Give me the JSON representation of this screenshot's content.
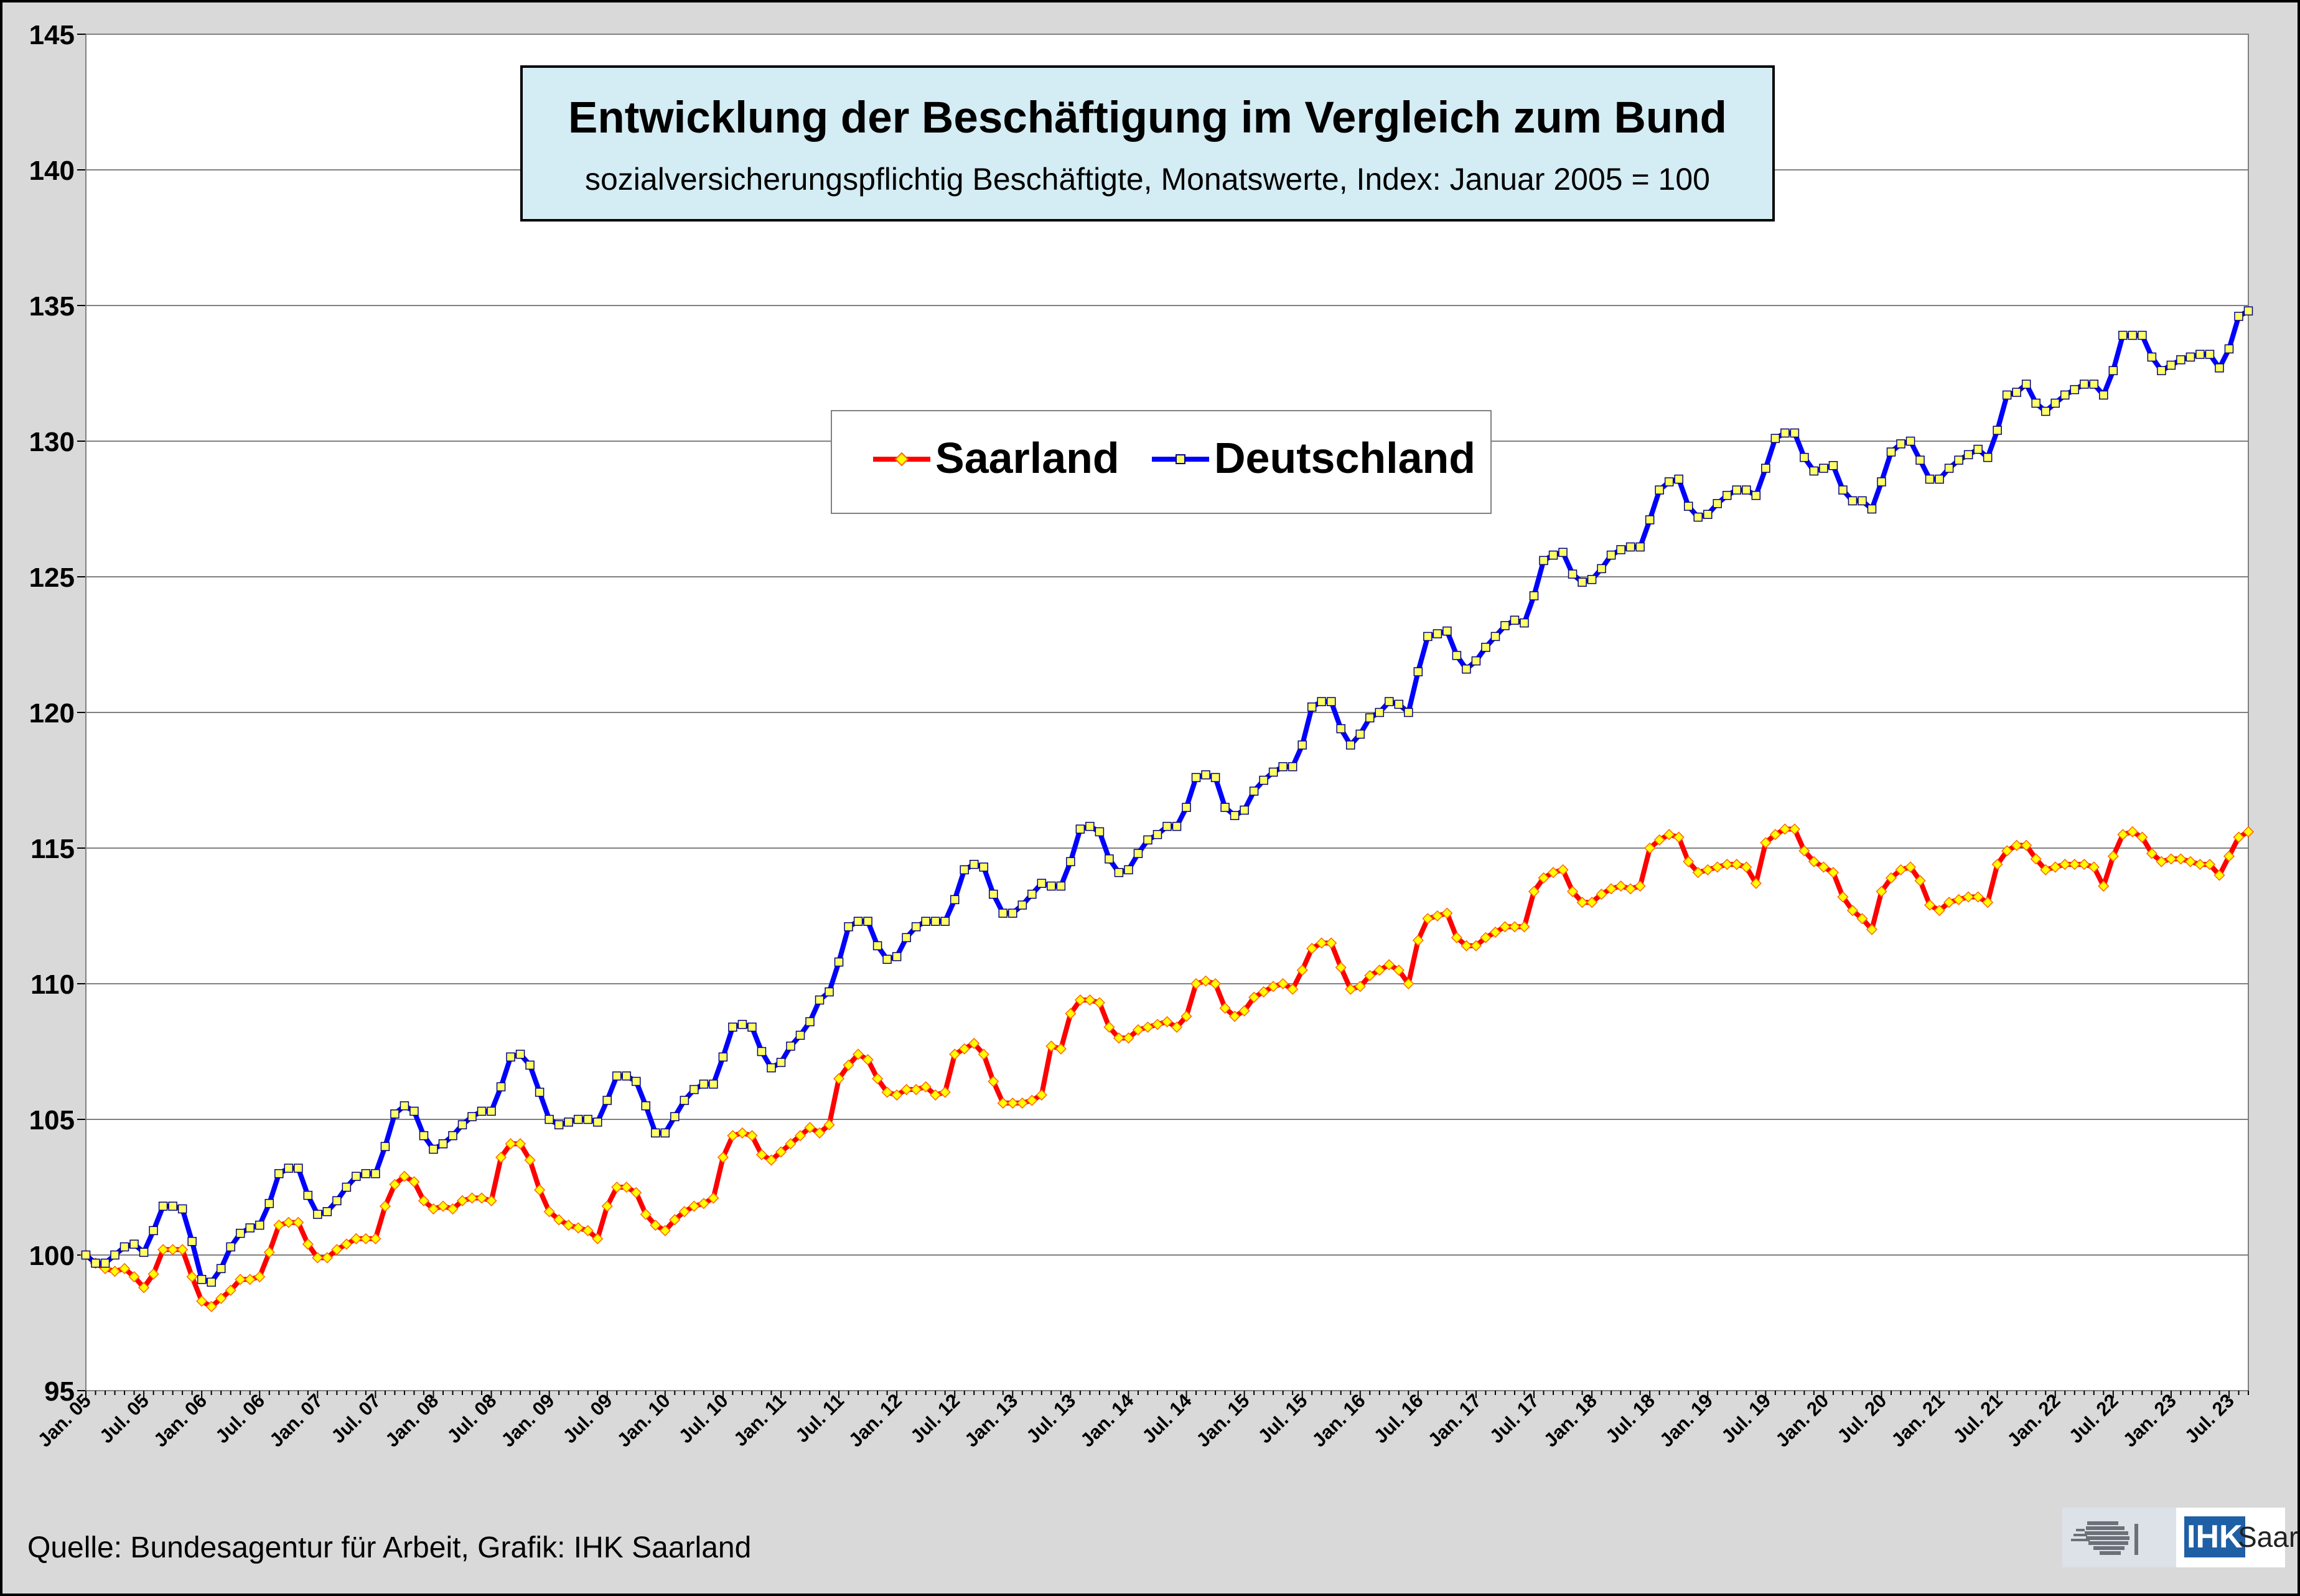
{
  "chart_data": {
    "type": "line",
    "title": "Entwicklung der Beschäftigung im Vergleich zum Bund",
    "subtitle": "sozialversicherungspflichtig Beschäftigte, Monatswerte, Index: Januar 2005 = 100",
    "xlabel": "",
    "ylabel": "",
    "ylim": [
      95,
      145
    ],
    "y_ticks": [
      95,
      100,
      105,
      110,
      115,
      120,
      125,
      130,
      135,
      140,
      145
    ],
    "grid": true,
    "legend_position": "upper-center",
    "x_start": "Jan. 05",
    "x_tick_labels": [
      "Jan. 05",
      "Jul. 05",
      "Jan. 06",
      "Jul. 06",
      "Jan. 07",
      "Jul. 07",
      "Jan. 08",
      "Jul. 08",
      "Jan. 09",
      "Jul. 09",
      "Jan. 10",
      "Jul. 10",
      "Jan. 11",
      "Jul. 11",
      "Jan. 12",
      "Jul. 12",
      "Jan. 13",
      "Jul. 13",
      "Jan. 14",
      "Jul. 14",
      "Jan. 15",
      "Jul. 15",
      "Jan. 16",
      "Jul. 16",
      "Jan. 17",
      "Jul. 17",
      "Jan. 18",
      "Jul. 18",
      "Jan. 19",
      "Jul. 19",
      "Jan. 20",
      "Jul. 20",
      "Jan. 21",
      "Jul. 21",
      "Jan. 22",
      "Jul. 22",
      "Jan. 23",
      "Jul. 23"
    ],
    "series": [
      {
        "name": "Saarland",
        "color": "#ff0000",
        "marker": "diamond",
        "marker_color": "#ffff00",
        "values": [
          100.0,
          99.7,
          99.5,
          99.4,
          99.5,
          99.2,
          98.8,
          99.3,
          100.2,
          100.2,
          100.2,
          99.2,
          98.3,
          98.1,
          98.4,
          98.7,
          99.1,
          99.1,
          99.2,
          100.1,
          101.1,
          101.2,
          101.2,
          100.4,
          99.9,
          99.9,
          100.2,
          100.4,
          100.6,
          100.6,
          100.6,
          101.8,
          102.6,
          102.9,
          102.7,
          102.0,
          101.7,
          101.8,
          101.7,
          102.0,
          102.1,
          102.1,
          102.0,
          103.6,
          104.1,
          104.1,
          103.5,
          102.4,
          101.6,
          101.3,
          101.1,
          101.0,
          100.9,
          100.6,
          101.8,
          102.5,
          102.5,
          102.3,
          101.5,
          101.1,
          100.9,
          101.3,
          101.6,
          101.8,
          101.9,
          102.1,
          103.6,
          104.4,
          104.5,
          104.4,
          103.7,
          103.5,
          103.8,
          104.1,
          104.4,
          104.7,
          104.5,
          104.8,
          106.5,
          107.0,
          107.4,
          107.2,
          106.5,
          106.0,
          105.9,
          106.1,
          106.1,
          106.2,
          105.9,
          106.0,
          107.4,
          107.6,
          107.8,
          107.4,
          106.4,
          105.6,
          105.6,
          105.6,
          105.7,
          105.9,
          107.7,
          107.6,
          108.9,
          109.4,
          109.4,
          109.3,
          108.4,
          108.0,
          108.0,
          108.3,
          108.4,
          108.5,
          108.6,
          108.4,
          108.8,
          110.0,
          110.1,
          110.0,
          109.1,
          108.8,
          109.0,
          109.5,
          109.7,
          109.9,
          110.0,
          109.8,
          110.5,
          111.3,
          111.5,
          111.5,
          110.6,
          109.8,
          109.9,
          110.3,
          110.5,
          110.7,
          110.5,
          110.0,
          111.6,
          112.4,
          112.5,
          112.6,
          111.7,
          111.4,
          111.4,
          111.7,
          111.9,
          112.1,
          112.1,
          112.1,
          113.4,
          113.9,
          114.1,
          114.2,
          113.4,
          113.0,
          113.0,
          113.3,
          113.5,
          113.6,
          113.5,
          113.6,
          115.0,
          115.3,
          115.5,
          115.4,
          114.5,
          114.1,
          114.2,
          114.3,
          114.4,
          114.4,
          114.3,
          113.7,
          115.2,
          115.5,
          115.7,
          115.7,
          114.9,
          114.5,
          114.3,
          114.1,
          113.2,
          112.7,
          112.4,
          112.0,
          113.4,
          113.9,
          114.2,
          114.3,
          113.8,
          112.9,
          112.7,
          113.0,
          113.1,
          113.2,
          113.2,
          113.0,
          114.4,
          114.9,
          115.1,
          115.1,
          114.6,
          114.2,
          114.3,
          114.4,
          114.4,
          114.4,
          114.3,
          113.6,
          114.7,
          115.5,
          115.6,
          115.4,
          114.8,
          114.5,
          114.6,
          114.6,
          114.5,
          114.4,
          114.4,
          114.0,
          114.7,
          115.4,
          115.6
        ]
      },
      {
        "name": "Deutschland",
        "color": "#0000ff",
        "marker": "square",
        "marker_color": "#ffff66",
        "values": [
          100.0,
          99.7,
          99.7,
          100.0,
          100.3,
          100.4,
          100.1,
          100.9,
          101.8,
          101.8,
          101.7,
          100.5,
          99.1,
          99.0,
          99.5,
          100.3,
          100.8,
          101.0,
          101.1,
          101.9,
          103.0,
          103.2,
          103.2,
          102.2,
          101.5,
          101.6,
          102.0,
          102.5,
          102.9,
          103.0,
          103.0,
          104.0,
          105.2,
          105.5,
          105.3,
          104.4,
          103.9,
          104.1,
          104.4,
          104.8,
          105.1,
          105.3,
          105.3,
          106.2,
          107.3,
          107.4,
          107.0,
          106.0,
          105.0,
          104.8,
          104.9,
          105.0,
          105.0,
          104.9,
          105.7,
          106.6,
          106.6,
          106.4,
          105.5,
          104.5,
          104.5,
          105.1,
          105.7,
          106.1,
          106.3,
          106.3,
          107.3,
          108.4,
          108.5,
          108.4,
          107.5,
          106.9,
          107.1,
          107.7,
          108.1,
          108.6,
          109.4,
          109.7,
          110.8,
          112.1,
          112.3,
          112.3,
          111.4,
          110.9,
          111.0,
          111.7,
          112.1,
          112.3,
          112.3,
          112.3,
          113.1,
          114.2,
          114.4,
          114.3,
          113.3,
          112.6,
          112.6,
          112.9,
          113.3,
          113.7,
          113.6,
          113.6,
          114.5,
          115.7,
          115.8,
          115.6,
          114.6,
          114.1,
          114.2,
          114.8,
          115.3,
          115.5,
          115.8,
          115.8,
          116.5,
          117.6,
          117.7,
          117.6,
          116.5,
          116.2,
          116.4,
          117.1,
          117.5,
          117.8,
          118.0,
          118.0,
          118.8,
          120.2,
          120.4,
          120.4,
          119.4,
          118.8,
          119.2,
          119.8,
          120.0,
          120.4,
          120.3,
          120.0,
          121.5,
          122.8,
          122.9,
          123.0,
          122.1,
          121.6,
          121.9,
          122.4,
          122.8,
          123.2,
          123.4,
          123.3,
          124.3,
          125.6,
          125.8,
          125.9,
          125.1,
          124.8,
          124.9,
          125.3,
          125.8,
          126.0,
          126.1,
          126.1,
          127.1,
          128.2,
          128.5,
          128.6,
          127.6,
          127.2,
          127.3,
          127.7,
          128.0,
          128.2,
          128.2,
          128.0,
          129.0,
          130.1,
          130.3,
          130.3,
          129.4,
          128.9,
          129.0,
          129.1,
          128.2,
          127.8,
          127.8,
          127.5,
          128.5,
          129.6,
          129.9,
          130.0,
          129.3,
          128.6,
          128.6,
          129.0,
          129.3,
          129.5,
          129.7,
          129.4,
          130.4,
          131.7,
          131.8,
          132.1,
          131.4,
          131.1,
          131.4,
          131.7,
          131.9,
          132.1,
          132.1,
          131.7,
          132.6,
          133.9,
          133.9,
          133.9,
          133.1,
          132.6,
          132.8,
          133.0,
          133.1,
          133.2,
          133.2,
          132.7,
          133.4,
          134.6,
          134.8
        ]
      }
    ]
  },
  "legend": {
    "saarland_label": "Saarland",
    "deutschland_label": "Deutschland"
  },
  "footer": {
    "source": "Quelle: Bundesagentur für Arbeit, Grafik: IHK Saarland",
    "logo_ihk": "IHK",
    "logo_name": "Saarland"
  }
}
